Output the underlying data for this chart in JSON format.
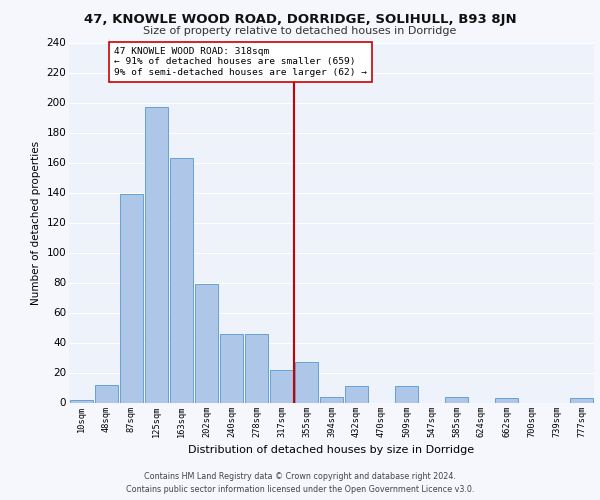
{
  "title": "47, KNOWLE WOOD ROAD, DORRIDGE, SOLIHULL, B93 8JN",
  "subtitle": "Size of property relative to detached houses in Dorridge",
  "xlabel": "Distribution of detached houses by size in Dorridge",
  "ylabel": "Number of detached properties",
  "bar_labels": [
    "10sqm",
    "48sqm",
    "87sqm",
    "125sqm",
    "163sqm",
    "202sqm",
    "240sqm",
    "278sqm",
    "317sqm",
    "355sqm",
    "394sqm",
    "432sqm",
    "470sqm",
    "509sqm",
    "547sqm",
    "585sqm",
    "624sqm",
    "662sqm",
    "700sqm",
    "739sqm",
    "777sqm"
  ],
  "bar_values": [
    2,
    12,
    139,
    197,
    163,
    79,
    46,
    46,
    22,
    27,
    4,
    11,
    0,
    11,
    0,
    4,
    0,
    3,
    0,
    0,
    3
  ],
  "bar_color": "#aec6e8",
  "bar_edge_color": "#5599cc",
  "vline_x": 8.5,
  "vline_color": "#cc0000",
  "annotation_text": "47 KNOWLE WOOD ROAD: 318sqm\n← 91% of detached houses are smaller (659)\n9% of semi-detached houses are larger (62) →",
  "annotation_box_color": "#ffffff",
  "annotation_box_edge": "#cc0000",
  "footer_line1": "Contains HM Land Registry data © Crown copyright and database right 2024.",
  "footer_line2": "Contains public sector information licensed under the Open Government Licence v3.0.",
  "bg_color": "#eef2fa",
  "grid_color": "#ffffff",
  "fig_bg_color": "#f5f7fd",
  "ylim": [
    0,
    240
  ],
  "yticks": [
    0,
    20,
    40,
    60,
    80,
    100,
    120,
    140,
    160,
    180,
    200,
    220,
    240
  ]
}
